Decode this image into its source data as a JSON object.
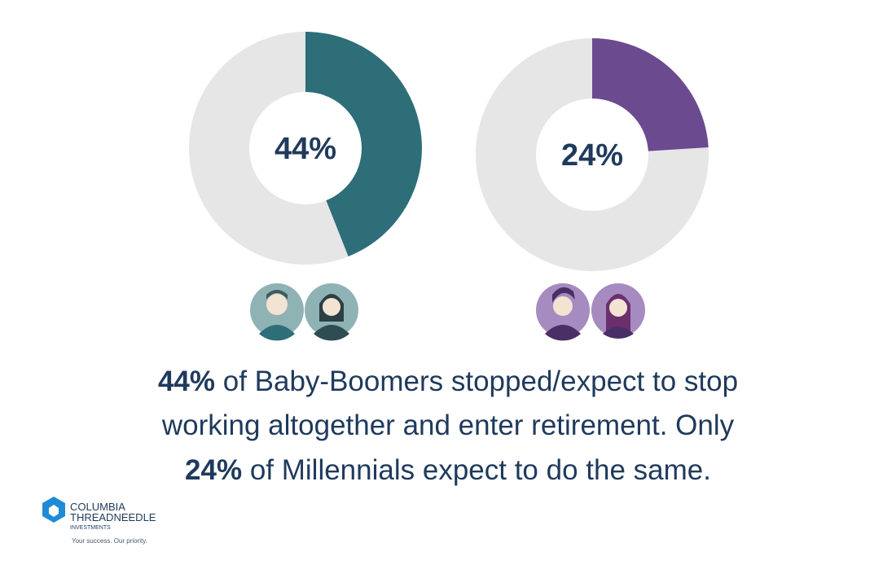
{
  "chart_data": [
    {
      "type": "donut",
      "values": [
        44
      ],
      "value_labels": [
        "44%"
      ],
      "color": "#2e6e78"
    },
    {
      "type": "donut",
      "values": [
        24
      ],
      "value_labels": [
        "24%"
      ],
      "color": "#6b4a8f"
    }
  ],
  "caption": {
    "lines": [
      [
        "44%",
        " of Baby-Boomers stopped/expect to stop"
      ],
      [
        "working altogether and enter retirement. Only"
      ],
      [
        "24%",
        " of Millennials expect to do the same."
      ]
    ]
  },
  "logo": {
    "line1": "COLUMBIA",
    "line2": "THREADNEEDLE",
    "line3": "INVESTMENTS",
    "tagline": "Your success. Our priority."
  }
}
